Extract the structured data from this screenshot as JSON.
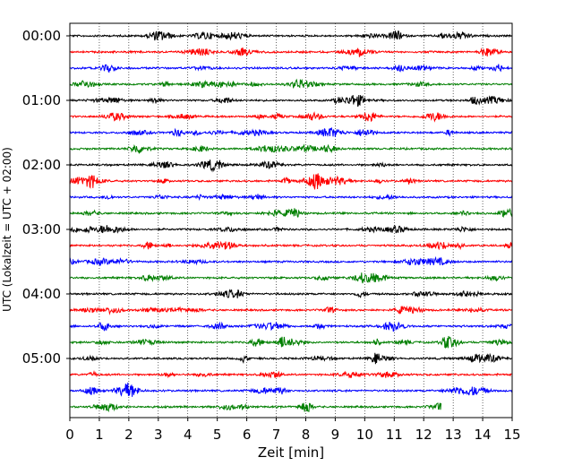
{
  "chart_data": {
    "type": "line",
    "title": "",
    "xlabel": "Zeit  [min]",
    "ylabel": "UTC (Lokalzeit = UTC + 02:00)",
    "xlim": [
      0,
      15
    ],
    "xticks": [
      "0",
      "1",
      "2",
      "3",
      "4",
      "5",
      "6",
      "7",
      "8",
      "9",
      "10",
      "11",
      "12",
      "13",
      "14",
      "15"
    ],
    "yticks": [
      "00:00",
      "01:00",
      "02:00",
      "03:00",
      "04:00",
      "05:00"
    ],
    "grid": "vertical dotted",
    "trace_count": 24,
    "trace_interval_min": 15,
    "trace_colors": [
      "#000000",
      "#ff0000",
      "#0000ff",
      "#007f00"
    ],
    "last_trace_end_min": 12.6
  }
}
